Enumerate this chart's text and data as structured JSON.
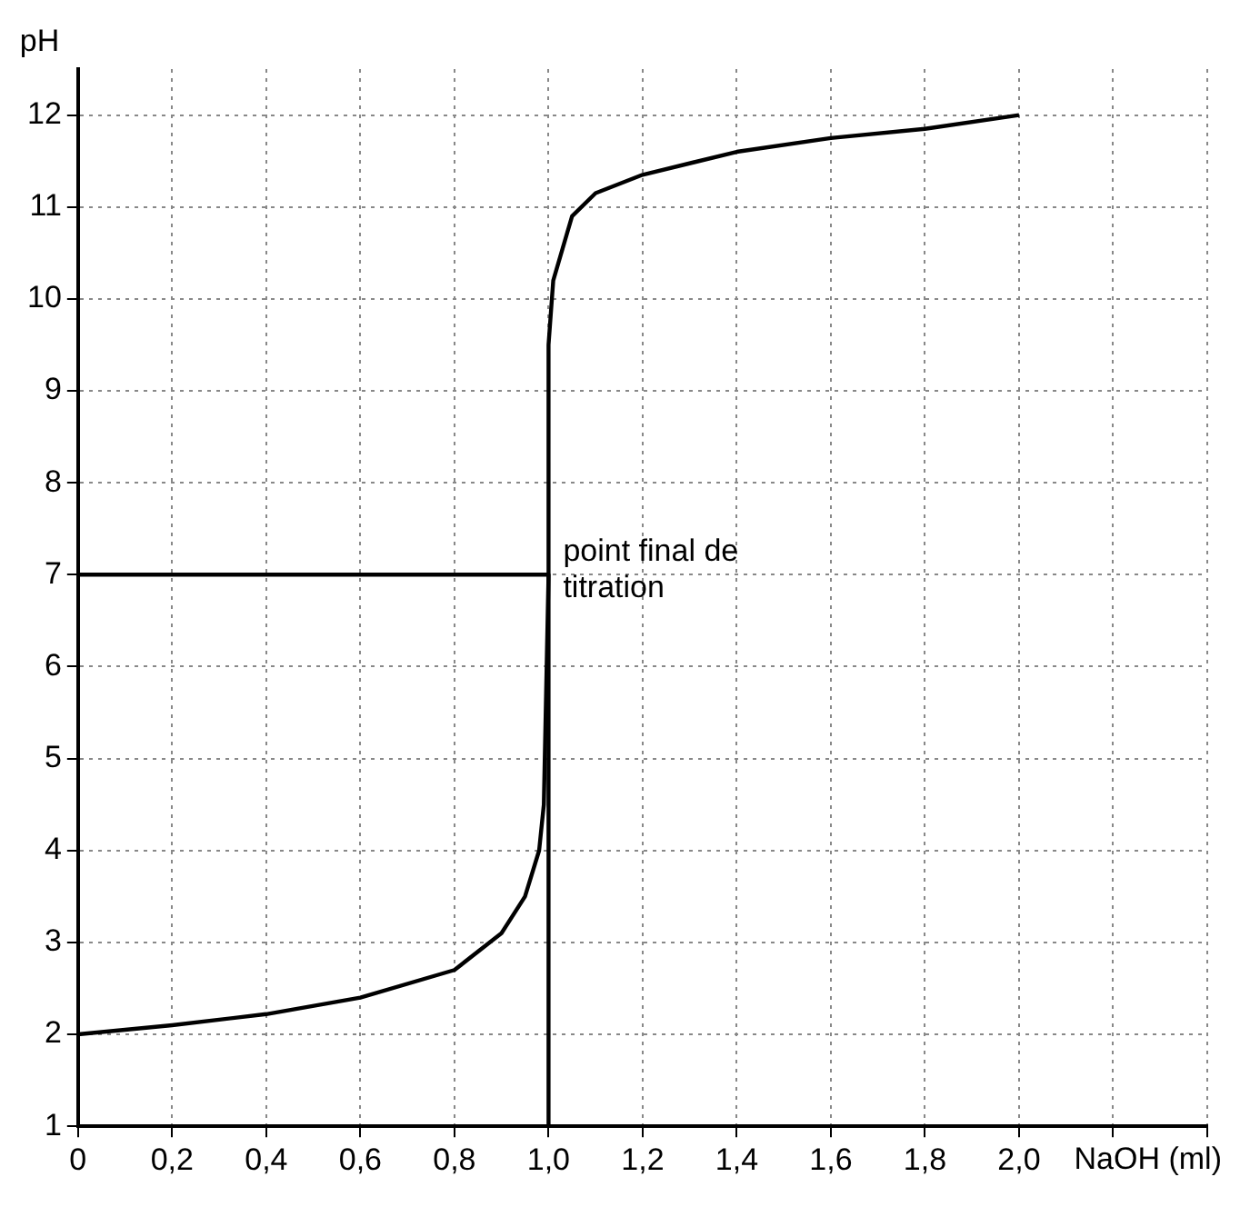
{
  "chart_data": {
    "type": "line",
    "xlabel": "NaOH (ml)",
    "ylabel": "pH",
    "xlim": [
      0,
      2.4
    ],
    "ylim": [
      1,
      12.5
    ],
    "xticks": [
      0,
      {
        "value": 0.2,
        "label": "0,2"
      },
      {
        "value": 0.4,
        "label": "0,4"
      },
      {
        "value": 0.6,
        "label": "0,6"
      },
      {
        "value": 0.8,
        "label": "0,8"
      },
      {
        "value": 1.0,
        "label": "1,0"
      },
      {
        "value": 1.2,
        "label": "1,2"
      },
      {
        "value": 1.4,
        "label": "1,4"
      },
      {
        "value": 1.6,
        "label": "1,6"
      },
      {
        "value": 1.8,
        "label": "1,8"
      },
      {
        "value": 2.0,
        "label": "2,0"
      },
      {
        "value": 2.2,
        "label": null
      },
      {
        "value": 2.4,
        "label": null
      }
    ],
    "yticks": [
      1,
      2,
      3,
      4,
      5,
      6,
      7,
      8,
      9,
      10,
      11,
      12
    ],
    "grid": true,
    "marker": "none",
    "line_style": "solid",
    "series": [
      {
        "color": "#000000",
        "x": [
          0,
          0.2,
          0.4,
          0.6,
          0.8,
          0.9,
          0.95,
          0.98,
          0.99,
          1.0,
          1.0,
          1.01,
          1.05,
          1.1,
          1.2,
          1.4,
          1.6,
          1.8,
          2.0
        ],
        "values": [
          2.0,
          2.1,
          2.22,
          2.4,
          2.7,
          3.1,
          3.5,
          4.0,
          4.5,
          7,
          9.5,
          10.2,
          10.9,
          11.15,
          11.35,
          11.6,
          11.75,
          11.85,
          12.0
        ]
      },
      {
        "color": "#000000",
        "x": [
          0,
          1.0,
          1.0
        ],
        "values": [
          7,
          7,
          1
        ]
      }
    ],
    "annotations": [
      {
        "text": "point final de titration",
        "x": 1.0,
        "y": 7
      }
    ]
  }
}
